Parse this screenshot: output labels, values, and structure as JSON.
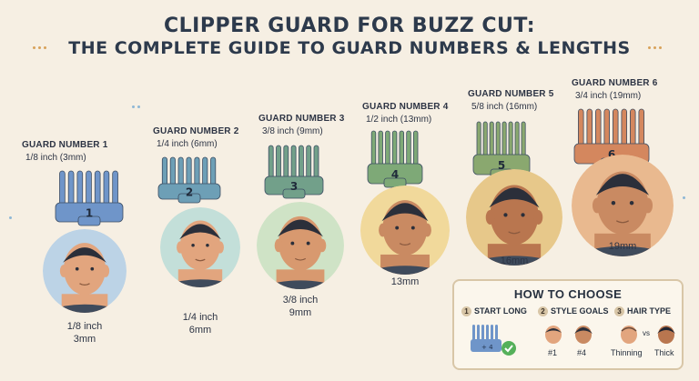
{
  "title": {
    "line1": "CLIPPER GUARD FOR BUZZ CUT:",
    "line2": "THE COMPLETE GUIDE TO GUARD NUMBERS & LENGTHS"
  },
  "guards": [
    {
      "label": "GUARD NUMBER 1",
      "size": "1/8 inch (3mm)",
      "number": "1",
      "below1": "1/8 inch",
      "below2": "3mm",
      "color": "#6f95c9",
      "level": 1
    },
    {
      "label": "GUARD NUMBER 2",
      "size": "1/4 inch (6mm)",
      "number": "2",
      "below1": "1/4 inch",
      "below2": "6mm",
      "color": "#6d9fb6",
      "level": 2
    },
    {
      "label": "GUARD NUMBER 3",
      "size": "3/8 inch (9mm)",
      "number": "3",
      "below1": "3/8 inch",
      "below2": "9mm",
      "color": "#72a08a",
      "level": 3
    },
    {
      "label": "GUARD NUMBER 4",
      "size": "1/2 inch (13mm)",
      "number": "4",
      "below1": "13mm",
      "below2": "",
      "color": "#7ea977",
      "level": 4
    },
    {
      "label": "GUARD NUMBER 5",
      "size": "5/8 inch (16mm)",
      "number": "5",
      "below1": "16mm",
      "below2": "",
      "color": "#8aa86f",
      "level": 5
    },
    {
      "label": "GUARD NUMBER 6",
      "size": "3/4 inch (19mm)",
      "number": "6",
      "below1": "19mm",
      "below2": "",
      "color": "#d4875e",
      "level": 6
    }
  ],
  "howto": {
    "title": "HOW TO CHOOSE",
    "steps": [
      {
        "num": "1",
        "label": "START LONG"
      },
      {
        "num": "2",
        "label": "STYLE GOALS",
        "opt1": "#1",
        "opt2": "#4"
      },
      {
        "num": "3",
        "label": "HAIR TYPE",
        "opt1": "Thinning",
        "vs": "vs",
        "opt2": "Thick"
      }
    ]
  },
  "colors": {
    "background": "#f6efe3",
    "skin": "#e2a57e",
    "skin_dark": "#b9764f",
    "hair": "#2b2f3a",
    "accent": "#d8c6a7",
    "check": "#55b05a"
  }
}
